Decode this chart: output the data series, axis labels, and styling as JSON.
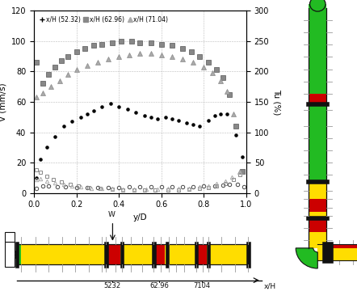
{
  "title": "",
  "left_ylabel": "V (mm/s)",
  "right_ylabel": "Tu (%)",
  "xlabel": "y/D",
  "xlim": [
    0,
    1
  ],
  "ylim_left": [
    0,
    120
  ],
  "ylim_right": [
    0,
    300
  ],
  "legend_labels": [
    "x/H (52.32)",
    "x/H (62.96)",
    "x/H (71.04)"
  ],
  "yticks_left": [
    0,
    20,
    40,
    60,
    80,
    100,
    120
  ],
  "yticks_right": [
    0,
    50,
    100,
    150,
    200,
    250,
    300
  ],
  "xticks": [
    0,
    0.2,
    0.4,
    0.6,
    0.8,
    1
  ],
  "green": "#22bb22",
  "yellow": "#ffdd00",
  "red": "#cc0000",
  "black": "#111111",
  "gray": "#999999",
  "lightgray": "#cccccc"
}
